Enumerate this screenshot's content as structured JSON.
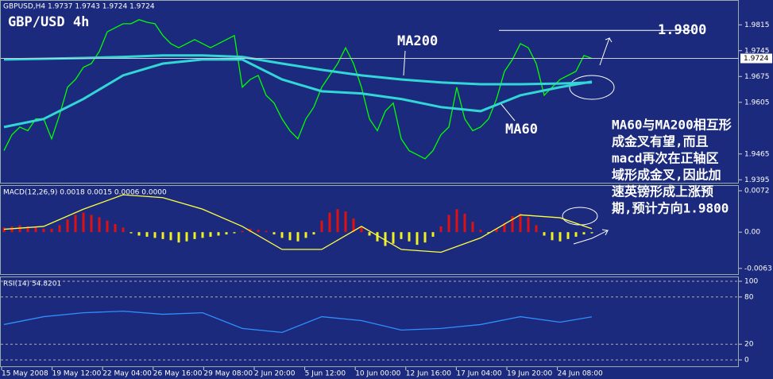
{
  "chart_data": [
    {
      "type": "line",
      "title": "GBPUSD,H4  1.9737 1.9743 1.9724 1.9724",
      "subtitle": "GBP/USD 4h",
      "ylim": [
        1.9387,
        1.9878
      ],
      "yticks": [
        1.9815,
        1.9745,
        1.9675,
        1.9605,
        1.9465,
        1.9395
      ],
      "series": [
        {
          "color": "#00ff00",
          "values": [
            1.9474,
            1.9517,
            1.9538,
            1.9528,
            1.956,
            1.956,
            1.9506,
            1.9571,
            1.9646,
            1.9667,
            1.97,
            1.971,
            1.9743,
            1.9796,
            1.9807,
            1.9818,
            1.9818,
            1.9829,
            1.9822,
            1.9818,
            1.9786,
            1.9764,
            1.9753,
            1.9764,
            1.9775,
            1.9764,
            1.9753,
            1.9764,
            1.9775,
            1.9786,
            1.9646,
            1.9667,
            1.9678,
            1.9624,
            1.9603,
            1.956,
            1.9528,
            1.9506,
            1.956,
            1.9592,
            1.9646,
            1.9678,
            1.971,
            1.9753,
            1.971,
            1.9646,
            1.956,
            1.9528,
            1.9581,
            1.9603,
            1.9506,
            1.9474,
            1.9463,
            1.9452,
            1.9474,
            1.9517,
            1.9538,
            1.9646,
            1.956,
            1.9528,
            1.9538,
            1.956,
            1.9614,
            1.9689,
            1.9721,
            1.9764,
            1.9753,
            1.971,
            1.9624,
            1.9646,
            1.9667,
            1.9678,
            1.9689,
            1.9732,
            1.9724
          ]
        },
        {
          "name": "MA200",
          "color": "#33d6d6",
          "x": [
            0,
            5,
            10,
            15,
            20,
            25,
            30,
            35,
            40,
            45,
            50,
            55,
            60,
            65,
            70,
            74
          ],
          "values": [
            1.9721,
            1.9723,
            1.9725,
            1.9728,
            1.9732,
            1.9732,
            1.9728,
            1.971,
            1.9693,
            1.9678,
            1.9667,
            1.9659,
            1.9654,
            1.9654,
            1.9656,
            1.9659
          ]
        },
        {
          "name": "MA60",
          "color": "#33d6d6",
          "x": [
            0,
            5,
            10,
            15,
            20,
            25,
            30,
            35,
            40,
            45,
            50,
            55,
            60,
            65,
            70,
            74
          ],
          "values": [
            1.9538,
            1.956,
            1.9614,
            1.9678,
            1.971,
            1.9721,
            1.9721,
            1.9667,
            1.9635,
            1.9629,
            1.9614,
            1.9592,
            1.9581,
            1.9624,
            1.9646,
            1.9661
          ]
        }
      ],
      "target": {
        "value": 1.98,
        "label": "1.9800"
      },
      "last_price": {
        "value": 1.9724,
        "label": "1.9724"
      },
      "note_lines": [
        "MA60与MA200相互形",
        "成金叉有望,而且",
        "macd再次在正轴区",
        "域形成金叉,因此加",
        "速英镑形成上涨预",
        "期,预计方向1.9800"
      ]
    },
    {
      "type": "bar",
      "title": "MACD(12,26,9) 0.0018 0.0015 0.0006 0.0000",
      "ylim": [
        -0.0073,
        0.0079
      ],
      "yticks": [
        0.0072,
        {
          "value": 0,
          "label": "0.00"
        },
        -0.0063
      ],
      "positive_color": "#e01010",
      "negative_color": "#f0f020",
      "values": [
        0.0008,
        0.001,
        0.0012,
        0.001,
        0.0008,
        0.0006,
        0.0006,
        0.0012,
        0.0022,
        0.003,
        0.0034,
        0.003,
        0.0026,
        0.002,
        0.0014,
        0.0008,
        -0.0002,
        -0.0006,
        -0.0008,
        -0.001,
        -0.0012,
        -0.0014,
        -0.0018,
        -0.0016,
        -0.0012,
        -0.001,
        -0.0008,
        -0.0006,
        -0.0004,
        -0.0002,
        0.0002,
        0.0006,
        0.0004,
        0.0002,
        -0.0004,
        -0.001,
        -0.0014,
        -0.0016,
        -0.001,
        -0.0004,
        0.002,
        0.0034,
        0.004,
        0.0036,
        0.0024,
        0.001,
        -0.0006,
        -0.0016,
        -0.0024,
        -0.002,
        -0.0012,
        -0.0016,
        -0.0022,
        -0.0018,
        -0.0008,
        0.001,
        0.003,
        0.004,
        0.0032,
        0.0018,
        0.0004,
        -0.0002,
        0.0006,
        0.0016,
        0.0028,
        0.0032,
        0.0026,
        0.0012,
        -0.0006,
        -0.0014,
        -0.0016,
        -0.0012,
        -0.0008,
        -0.0004,
        -0.0002
      ],
      "series": [
        {
          "color": "#ffff40",
          "x": [
            0,
            5,
            10,
            15,
            20,
            25,
            30,
            35,
            40,
            45,
            50,
            55,
            60,
            65,
            70,
            74
          ],
          "values": [
            0.0005,
            0.001,
            0.004,
            0.0065,
            0.006,
            0.004,
            0.001,
            -0.003,
            -0.003,
            0.001,
            -0.003,
            -0.0035,
            -0.001,
            0.003,
            0.0025,
            0.0006
          ]
        }
      ]
    },
    {
      "type": "line",
      "title": "RSI(14) 54.8201",
      "ylim": [
        0,
        100
      ],
      "yticks": [
        100,
        80,
        20,
        0
      ],
      "grid": true,
      "series": [
        {
          "color": "#2f8fff",
          "x": [
            0,
            5,
            10,
            15,
            20,
            25,
            30,
            35,
            40,
            45,
            50,
            55,
            60,
            65,
            70,
            74
          ],
          "values": [
            45,
            55,
            60,
            62,
            58,
            60,
            40,
            35,
            55,
            50,
            38,
            40,
            45,
            55,
            48,
            54.8201
          ]
        }
      ],
      "x_tick_labels": [
        "15 May 2008",
        "19 May 12:00",
        "22 May 04:00",
        "26 May 16:00",
        "29 May 08:00",
        "2 Jun 20:00",
        "5 Jun 12:00",
        "10 Jun 00:00",
        "12 Jun 16:00",
        "17 Jun 04:00",
        "19 Jun 20:00",
        "24 Jun 08:00"
      ]
    }
  ]
}
